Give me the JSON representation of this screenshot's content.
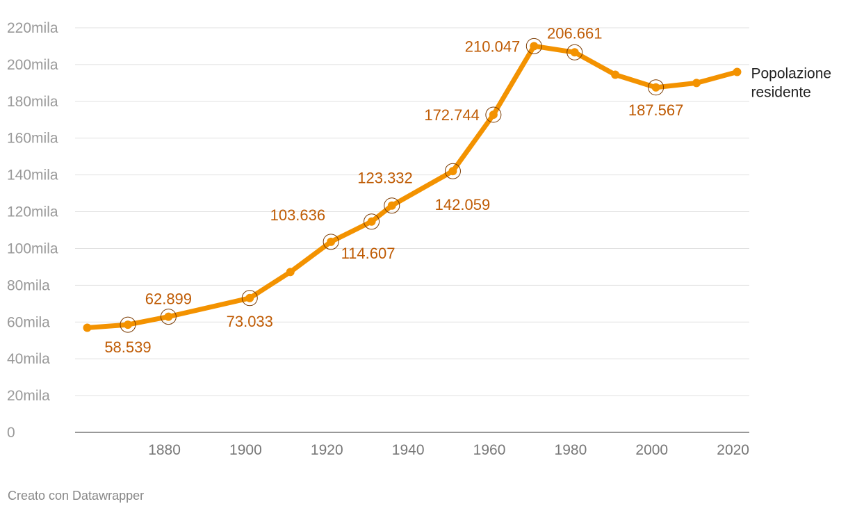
{
  "chart_data": {
    "type": "line",
    "series": [
      {
        "name": "Popolazione residente",
        "color": "#f39200",
        "points": [
          {
            "x": 1861,
            "y": 56900,
            "label": ""
          },
          {
            "x": 1871,
            "y": 58539,
            "label": "58.539"
          },
          {
            "x": 1881,
            "y": 62899,
            "label": "62.899"
          },
          {
            "x": 1901,
            "y": 73033,
            "label": "73.033"
          },
          {
            "x": 1911,
            "y": 87200,
            "label": ""
          },
          {
            "x": 1921,
            "y": 103636,
            "label": "103.636"
          },
          {
            "x": 1931,
            "y": 114607,
            "label": "114.607"
          },
          {
            "x": 1936,
            "y": 123332,
            "label": "123.332"
          },
          {
            "x": 1951,
            "y": 142059,
            "label": "142.059"
          },
          {
            "x": 1961,
            "y": 172744,
            "label": "172.744"
          },
          {
            "x": 1971,
            "y": 210047,
            "label": "210.047"
          },
          {
            "x": 1981,
            "y": 206661,
            "label": "206.661"
          },
          {
            "x": 1991,
            "y": 194500,
            "label": ""
          },
          {
            "x": 2001,
            "y": 187567,
            "label": "187.567"
          },
          {
            "x": 2011,
            "y": 190000,
            "label": ""
          },
          {
            "x": 2021,
            "y": 196000,
            "label": ""
          }
        ]
      }
    ],
    "series_label_lines": [
      "Popolazione",
      "residente"
    ],
    "xlim": [
      1858,
      2024
    ],
    "ylim": [
      0,
      220000
    ],
    "x_ticks": [
      {
        "value": 1880,
        "label": "1880"
      },
      {
        "value": 1900,
        "label": "1900"
      },
      {
        "value": 1920,
        "label": "1920"
      },
      {
        "value": 1940,
        "label": "1940"
      },
      {
        "value": 1960,
        "label": "1960"
      },
      {
        "value": 1980,
        "label": "1980"
      },
      {
        "value": 2000,
        "label": "2000"
      },
      {
        "value": 2020,
        "label": "2020"
      }
    ],
    "y_ticks": [
      {
        "value": 0,
        "label": "0"
      },
      {
        "value": 20000,
        "label": "20mila"
      },
      {
        "value": 40000,
        "label": "40mila"
      },
      {
        "value": 60000,
        "label": "60mila"
      },
      {
        "value": 80000,
        "label": "80mila"
      },
      {
        "value": 100000,
        "label": "100mila"
      },
      {
        "value": 120000,
        "label": "120mila"
      },
      {
        "value": 140000,
        "label": "140mila"
      },
      {
        "value": 160000,
        "label": "160mila"
      },
      {
        "value": 180000,
        "label": "180mila"
      },
      {
        "value": 200000,
        "label": "200mila"
      },
      {
        "value": 220000,
        "label": "220mila"
      }
    ],
    "grid": true,
    "title": "",
    "xlabel": "",
    "ylabel": ""
  },
  "footer": {
    "credit": "Creato con Datawrapper"
  }
}
